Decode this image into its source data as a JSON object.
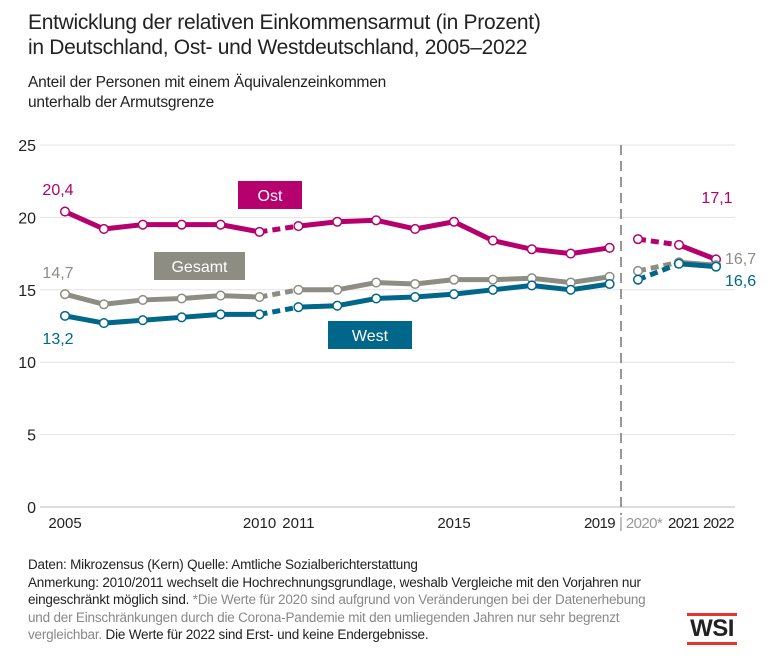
{
  "chart_data": {
    "type": "line",
    "title": "Entwicklung der relativen Einkommensarmut (in Prozent) in Deutschland, Ost- und Westdeutschland, 2005–2022",
    "title_lines": [
      "Entwicklung der relativen Einkommensarmut (in Prozent)",
      "in Deutschland, Ost- und Westdeutschland, 2005–2022"
    ],
    "subtitle_lines": [
      "Anteil der Personen mit einem Äquivalenzeinkommen",
      "unterhalb der Armutsgrenze"
    ],
    "x": [
      2005,
      2006,
      2007,
      2008,
      2009,
      2010,
      2011,
      2012,
      2013,
      2014,
      2015,
      2016,
      2017,
      2018,
      2019,
      2020,
      2021,
      2022
    ],
    "x_tick_labels": [
      "2005",
      "2010",
      "2011",
      "2015",
      "2019",
      "| 2020*",
      "2021",
      "2022"
    ],
    "ylim": [
      0,
      25
    ],
    "y_ticks": [
      "0",
      "5",
      "10",
      "15",
      "20",
      "25"
    ],
    "grid": true,
    "series": [
      {
        "name": "Ost",
        "color": "#b5006e",
        "values": [
          20.4,
          19.2,
          19.5,
          19.5,
          19.5,
          19.0,
          19.4,
          19.7,
          19.8,
          19.2,
          19.7,
          18.4,
          17.8,
          17.5,
          17.9,
          18.5,
          18.1,
          17.1
        ],
        "first_label": "20,4",
        "last_label": "17,1"
      },
      {
        "name": "Gesamt",
        "color": "#8e8d83",
        "values": [
          14.7,
          14.0,
          14.3,
          14.4,
          14.6,
          14.5,
          15.0,
          15.0,
          15.5,
          15.4,
          15.7,
          15.7,
          15.8,
          15.5,
          15.9,
          16.3,
          16.9,
          16.7
        ],
        "first_label": "14,7",
        "last_label": "16,7"
      },
      {
        "name": "West",
        "color": "#00668a",
        "values": [
          13.2,
          12.7,
          12.9,
          13.1,
          13.3,
          13.3,
          13.8,
          13.9,
          14.4,
          14.5,
          14.7,
          15.0,
          15.3,
          15.0,
          15.4,
          15.7,
          16.8,
          16.6
        ],
        "first_label": "13,2",
        "last_label": "16,6"
      }
    ]
  },
  "footer": {
    "line1": "Daten: Mikrozensus (Kern)   Quelle: Amtliche Sozialberichterstattung",
    "note_a": "Anmerkung: 2010/2011 wechselt die Hochrechnungsgrundlage, weshalb Vergleiche mit den Vorjahren nur eingeschränkt möglich sind.",
    "note_b": "*Die Werte für 2020 sind aufgrund von Veränderungen bei der Datenerhebung und der Einschränkungen durch die Corona-Pandemie mit den umliegenden Jahren nur sehr begrenzt vergleichbar.",
    "note_c": "Die Werte für 2022 sind Erst- und keine Endergebnisse."
  },
  "logo": "WSI"
}
